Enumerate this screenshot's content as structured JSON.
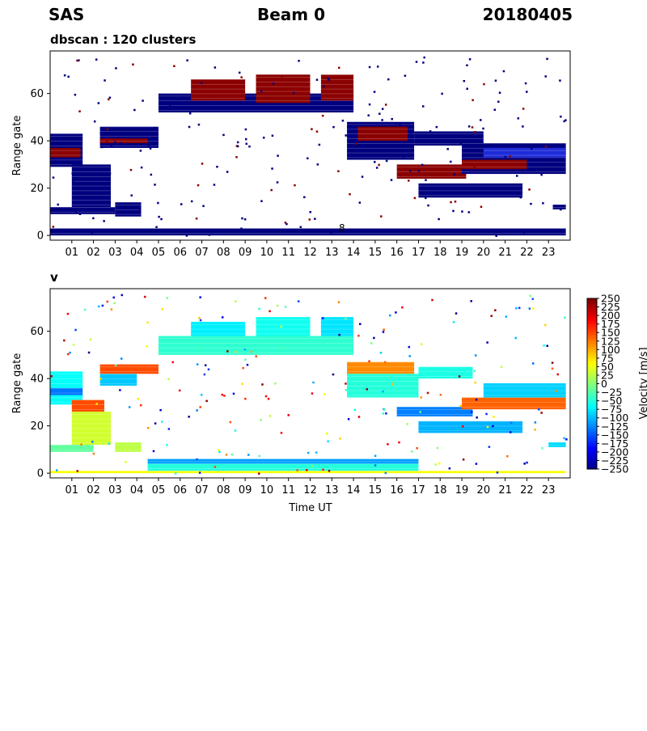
{
  "header": {
    "station": "SAS",
    "beam": "Beam 0",
    "date": "20180405"
  },
  "colors": {
    "cluster_dark": "#00007f",
    "cluster_red": "#8b0000",
    "cluster_mid": "#1e2bd8"
  },
  "chart_data": [
    {
      "type": "heatmap",
      "title": "dbscan : 120 clusters",
      "xlabel": "",
      "ylabel": "Range gate",
      "xlim": [
        0,
        24
      ],
      "ylim": [
        -2,
        78
      ],
      "x_ticks": [
        "01",
        "02",
        "03",
        "04",
        "05",
        "06",
        "07",
        "08",
        "09",
        "10",
        "11",
        "12",
        "13",
        "14",
        "15",
        "16",
        "17",
        "18",
        "19",
        "20",
        "21",
        "22",
        "23"
      ],
      "y_ticks": [
        0,
        20,
        40,
        60
      ],
      "annotation": "8",
      "grid": false,
      "bands": [
        {
          "x0": 0.0,
          "x1": 23.8,
          "y0": 0,
          "y1": 3,
          "color": "cluster_dark"
        },
        {
          "x0": 0.0,
          "x1": 1.5,
          "y0": 29,
          "y1": 43,
          "color": "cluster_dark"
        },
        {
          "x0": 0.0,
          "x1": 1.4,
          "y0": 33,
          "y1": 37,
          "color": "cluster_red"
        },
        {
          "x0": 0.0,
          "x1": 3.0,
          "y0": 9,
          "y1": 12,
          "color": "cluster_dark"
        },
        {
          "x0": 1.0,
          "x1": 2.8,
          "y0": 12,
          "y1": 30,
          "color": "cluster_dark"
        },
        {
          "x0": 2.3,
          "x1": 5.0,
          "y0": 37,
          "y1": 46,
          "color": "cluster_dark"
        },
        {
          "x0": 2.3,
          "x1": 4.5,
          "y0": 39,
          "y1": 41,
          "color": "cluster_red"
        },
        {
          "x0": 3.0,
          "x1": 4.2,
          "y0": 8,
          "y1": 14,
          "color": "cluster_dark"
        },
        {
          "x0": 5.0,
          "x1": 14.0,
          "y0": 52,
          "y1": 60,
          "color": "cluster_dark"
        },
        {
          "x0": 6.5,
          "x1": 9.0,
          "y0": 57,
          "y1": 66,
          "color": "cluster_red"
        },
        {
          "x0": 9.5,
          "x1": 12.0,
          "y0": 56,
          "y1": 68,
          "color": "cluster_red"
        },
        {
          "x0": 12.5,
          "x1": 14.0,
          "y0": 57,
          "y1": 68,
          "color": "cluster_red"
        },
        {
          "x0": 13.7,
          "x1": 16.8,
          "y0": 32,
          "y1": 48,
          "color": "cluster_dark"
        },
        {
          "x0": 14.2,
          "x1": 16.5,
          "y0": 40,
          "y1": 46,
          "color": "cluster_red"
        },
        {
          "x0": 16.0,
          "x1": 19.2,
          "y0": 24,
          "y1": 30,
          "color": "cluster_red"
        },
        {
          "x0": 16.8,
          "x1": 20.0,
          "y0": 38,
          "y1": 44,
          "color": "cluster_dark"
        },
        {
          "x0": 17.0,
          "x1": 21.8,
          "y0": 16,
          "y1": 22,
          "color": "cluster_dark"
        },
        {
          "x0": 19.0,
          "x1": 23.8,
          "y0": 26,
          "y1": 39,
          "color": "cluster_dark"
        },
        {
          "x0": 19.0,
          "x1": 22.0,
          "y0": 28,
          "y1": 32,
          "color": "cluster_red"
        },
        {
          "x0": 20.0,
          "x1": 23.8,
          "y0": 33,
          "y1": 37,
          "color": "cluster_mid"
        },
        {
          "x0": 23.2,
          "x1": 23.8,
          "y0": 11,
          "y1": 13,
          "color": "cluster_dark"
        }
      ]
    },
    {
      "type": "heatmap",
      "title": "v",
      "xlabel": "Time UT",
      "ylabel": "Range gate",
      "xlim": [
        0,
        24
      ],
      "ylim": [
        -2,
        78
      ],
      "x_ticks": [
        "01",
        "02",
        "03",
        "04",
        "05",
        "06",
        "07",
        "08",
        "09",
        "10",
        "11",
        "12",
        "13",
        "14",
        "15",
        "16",
        "17",
        "18",
        "19",
        "20",
        "21",
        "22",
        "23"
      ],
      "y_ticks": [
        0,
        20,
        40,
        60
      ],
      "grid": false,
      "colorbar": {
        "label": "Velocity [m/s]",
        "range": [
          -250,
          250
        ],
        "ticks": [
          "250",
          "225",
          "200",
          "175",
          "150",
          "125",
          "100",
          "75",
          "50",
          "25",
          "0",
          "−25",
          "−50",
          "−75",
          "−100",
          "−125",
          "−150",
          "−175",
          "−200",
          "−225",
          "−250"
        ]
      },
      "bands": [
        {
          "x0": 0.0,
          "x1": 23.8,
          "y0": 0,
          "y1": 1,
          "v": 60
        },
        {
          "x0": 4.5,
          "x1": 17.0,
          "y0": 1,
          "y1": 4,
          "v": -45
        },
        {
          "x0": 4.5,
          "x1": 17.0,
          "y0": 4,
          "y1": 6,
          "v": -110
        },
        {
          "x0": 0.0,
          "x1": 1.5,
          "y0": 29,
          "y1": 43,
          "v": -60
        },
        {
          "x0": 0.0,
          "x1": 1.5,
          "y0": 33,
          "y1": 36,
          "v": -130
        },
        {
          "x0": 0.0,
          "x1": 2.0,
          "y0": 9,
          "y1": 12,
          "v": -15
        },
        {
          "x0": 1.0,
          "x1": 2.5,
          "y0": 26,
          "y1": 31,
          "v": 150
        },
        {
          "x0": 1.0,
          "x1": 2.8,
          "y0": 12,
          "y1": 26,
          "v": 40
        },
        {
          "x0": 2.3,
          "x1": 5.0,
          "y0": 42,
          "y1": 46,
          "v": 150
        },
        {
          "x0": 2.3,
          "x1": 4.0,
          "y0": 37,
          "y1": 42,
          "v": -90
        },
        {
          "x0": 3.0,
          "x1": 4.2,
          "y0": 9,
          "y1": 13,
          "v": 30
        },
        {
          "x0": 5.0,
          "x1": 14.0,
          "y0": 50,
          "y1": 58,
          "v": -40
        },
        {
          "x0": 6.5,
          "x1": 9.0,
          "y0": 58,
          "y1": 64,
          "v": -70
        },
        {
          "x0": 9.5,
          "x1": 12.0,
          "y0": 58,
          "y1": 66,
          "v": -55
        },
        {
          "x0": 12.5,
          "x1": 14.0,
          "y0": 58,
          "y1": 66,
          "v": -75
        },
        {
          "x0": 13.7,
          "x1": 16.8,
          "y0": 42,
          "y1": 47,
          "v": 120
        },
        {
          "x0": 13.7,
          "x1": 17.0,
          "y0": 32,
          "y1": 42,
          "v": -45
        },
        {
          "x0": 16.0,
          "x1": 19.5,
          "y0": 24,
          "y1": 28,
          "v": -125
        },
        {
          "x0": 17.0,
          "x1": 19.5,
          "y0": 40,
          "y1": 45,
          "v": -50
        },
        {
          "x0": 17.0,
          "x1": 21.8,
          "y0": 17,
          "y1": 22,
          "v": -100
        },
        {
          "x0": 19.0,
          "x1": 23.8,
          "y0": 27,
          "y1": 32,
          "v": 140
        },
        {
          "x0": 20.0,
          "x1": 23.8,
          "y0": 32,
          "y1": 38,
          "v": -85
        },
        {
          "x0": 23.0,
          "x1": 23.8,
          "y0": 11,
          "y1": 13,
          "v": -80
        }
      ]
    }
  ]
}
